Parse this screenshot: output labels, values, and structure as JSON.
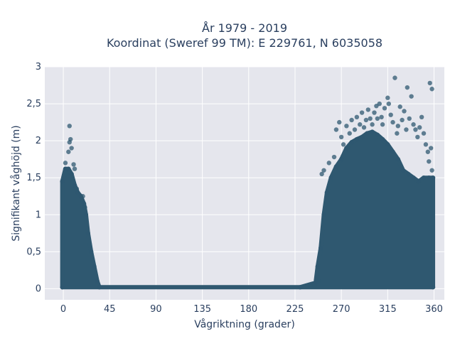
{
  "chart_data": {
    "type": "scatter",
    "title_line1": "År 1979 - 2019",
    "title_line2": "Koordinat (Sweref 99 TM): E 229761, N 6035058",
    "xlabel": "Vågriktning (grader)",
    "ylabel": "Signifikant våghöjd (m)",
    "xlim": [
      -18,
      370
    ],
    "ylim": [
      -0.15,
      3.0
    ],
    "x_ticks": [
      0,
      45,
      90,
      135,
      180,
      225,
      270,
      315,
      360
    ],
    "x_tick_labels": [
      "0",
      "45",
      "90",
      "135",
      "180",
      "225",
      "270",
      "315",
      "360"
    ],
    "y_ticks": [
      0,
      0.5,
      1,
      1.5,
      2,
      2.5,
      3
    ],
    "y_tick_labels": [
      "0",
      "0,5",
      "1",
      "1,5",
      "2",
      "2,5",
      "3"
    ],
    "grid": true,
    "marker_color": "#2f5870",
    "plot_background": "#e5e6ed",
    "envelope_points": [
      [
        -1,
        0.02
      ],
      [
        -1,
        1.45
      ],
      [
        2,
        1.62
      ],
      [
        5,
        1.62
      ],
      [
        8,
        1.55
      ],
      [
        11,
        1.4
      ],
      [
        14,
        1.3
      ],
      [
        17,
        1.25
      ],
      [
        20,
        1.15
      ],
      [
        22,
        1.0
      ],
      [
        24,
        0.75
      ],
      [
        27,
        0.5
      ],
      [
        30,
        0.3
      ],
      [
        33,
        0.1
      ],
      [
        35,
        0.02
      ],
      [
        230,
        0.02
      ],
      [
        245,
        0.08
      ],
      [
        247,
        0.3
      ],
      [
        250,
        0.55
      ],
      [
        253,
        1.0
      ],
      [
        256,
        1.3
      ],
      [
        260,
        1.5
      ],
      [
        265,
        1.65
      ],
      [
        270,
        1.75
      ],
      [
        275,
        1.9
      ],
      [
        280,
        1.98
      ],
      [
        285,
        2.02
      ],
      [
        290,
        2.05
      ],
      [
        295,
        2.1
      ],
      [
        300,
        2.12
      ],
      [
        305,
        2.08
      ],
      [
        310,
        2.02
      ],
      [
        315,
        1.95
      ],
      [
        320,
        1.85
      ],
      [
        325,
        1.75
      ],
      [
        330,
        1.6
      ],
      [
        335,
        1.55
      ],
      [
        340,
        1.5
      ],
      [
        345,
        1.45
      ],
      [
        350,
        1.5
      ],
      [
        355,
        1.5
      ],
      [
        359,
        1.5
      ],
      [
        359,
        0.02
      ]
    ],
    "outliers": [
      [
        2,
        1.7
      ],
      [
        5,
        1.85
      ],
      [
        6,
        1.98
      ],
      [
        7,
        2.02
      ],
      [
        8,
        1.9
      ],
      [
        6,
        2.2
      ],
      [
        3,
        1.55
      ],
      [
        11,
        1.62
      ],
      [
        10,
        1.68
      ],
      [
        13,
        1.35
      ],
      [
        19,
        1.25
      ],
      [
        21,
        1.1
      ],
      [
        240,
        0.04
      ],
      [
        244,
        0.03
      ],
      [
        248,
        0.1
      ],
      [
        251,
        1.55
      ],
      [
        253,
        1.6
      ],
      [
        258,
        1.7
      ],
      [
        263,
        1.78
      ],
      [
        265,
        2.15
      ],
      [
        268,
        2.25
      ],
      [
        270,
        2.05
      ],
      [
        272,
        1.95
      ],
      [
        275,
        2.2
      ],
      [
        278,
        2.1
      ],
      [
        280,
        2.28
      ],
      [
        283,
        2.15
      ],
      [
        285,
        2.32
      ],
      [
        288,
        2.22
      ],
      [
        290,
        2.38
      ],
      [
        292,
        2.18
      ],
      [
        294,
        2.28
      ],
      [
        296,
        2.42
      ],
      [
        298,
        2.3
      ],
      [
        300,
        2.22
      ],
      [
        302,
        2.38
      ],
      [
        304,
        2.47
      ],
      [
        305,
        2.3
      ],
      [
        307,
        2.5
      ],
      [
        309,
        2.32
      ],
      [
        310,
        2.22
      ],
      [
        312,
        2.44
      ],
      [
        315,
        2.58
      ],
      [
        316,
        2.5
      ],
      [
        318,
        2.35
      ],
      [
        320,
        2.25
      ],
      [
        322,
        2.85
      ],
      [
        324,
        2.1
      ],
      [
        325,
        2.2
      ],
      [
        327,
        2.46
      ],
      [
        329,
        2.28
      ],
      [
        331,
        2.4
      ],
      [
        333,
        2.15
      ],
      [
        334,
        2.72
      ],
      [
        336,
        2.3
      ],
      [
        338,
        2.6
      ],
      [
        340,
        2.22
      ],
      [
        342,
        2.15
      ],
      [
        344,
        2.05
      ],
      [
        346,
        2.18
      ],
      [
        348,
        2.32
      ],
      [
        350,
        2.1
      ],
      [
        352,
        1.95
      ],
      [
        354,
        1.85
      ],
      [
        355,
        1.72
      ],
      [
        356,
        2.78
      ],
      [
        357,
        1.9
      ],
      [
        358,
        2.7
      ],
      [
        358,
        1.6
      ]
    ]
  }
}
